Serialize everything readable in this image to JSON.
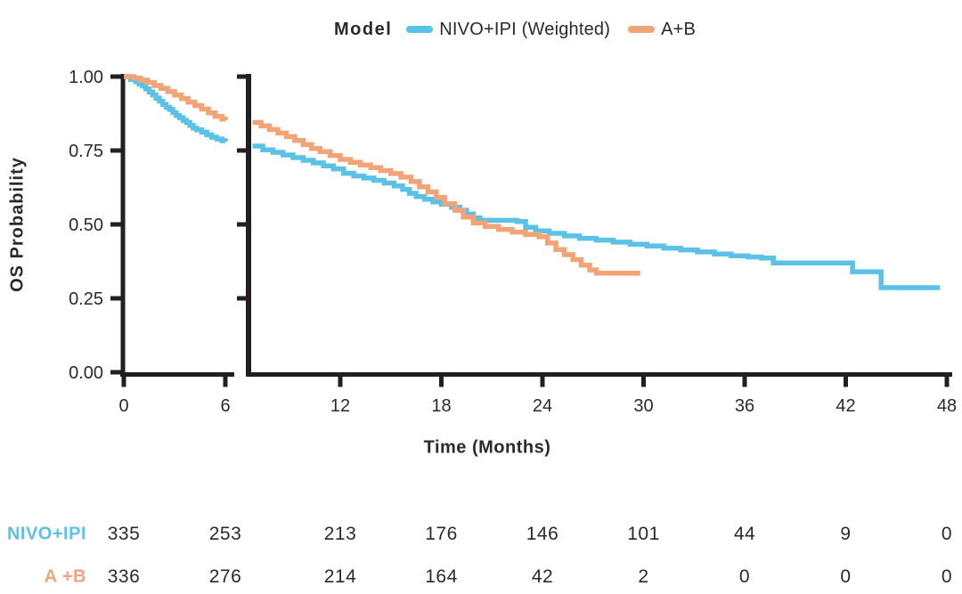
{
  "legend": {
    "title": "Model",
    "items": [
      {
        "label": "NIVO+IPI (Weighted)",
        "color": "#5BC2E7"
      },
      {
        "label": "A+B",
        "color": "#F2A477"
      }
    ]
  },
  "axes": {
    "y_label": "OS Probability",
    "x_label": "Time (Months)",
    "y_ticks": [
      "1.00",
      "0.75",
      "0.50",
      "0.25",
      "0.00"
    ],
    "y_tick_values": [
      1.0,
      0.75,
      0.5,
      0.25,
      0.0
    ],
    "x_ticks_left_panel": [
      0,
      6
    ],
    "x_ticks_main_panel": [
      12,
      18,
      24,
      30,
      36,
      42,
      48
    ]
  },
  "chart_data": {
    "type": "line",
    "subtype": "kaplan-meier-step",
    "title": "",
    "xlabel": "Time (Months)",
    "ylabel": "OS Probability",
    "ylim": [
      0.0,
      1.0
    ],
    "xlim": [
      0,
      48
    ],
    "axis_break_after_month": 6,
    "grid": false,
    "legend_position": "top-center",
    "series": [
      {
        "name": "NIVO+IPI (Weighted)",
        "color": "#5BC2E7",
        "left_panel_points": [
          [
            0,
            1.0
          ],
          [
            0.4,
            0.99
          ],
          [
            0.7,
            0.983
          ],
          [
            0.9,
            0.975
          ],
          [
            1.1,
            0.968
          ],
          [
            1.3,
            0.958
          ],
          [
            1.5,
            0.948
          ],
          [
            1.7,
            0.938
          ],
          [
            1.9,
            0.927
          ],
          [
            2.1,
            0.917
          ],
          [
            2.3,
            0.906
          ],
          [
            2.5,
            0.896
          ],
          [
            2.7,
            0.889
          ],
          [
            2.9,
            0.878
          ],
          [
            3.1,
            0.868
          ],
          [
            3.3,
            0.861
          ],
          [
            3.5,
            0.852
          ],
          [
            3.7,
            0.845
          ],
          [
            3.9,
            0.835
          ],
          [
            4.1,
            0.826
          ],
          [
            4.3,
            0.82
          ],
          [
            4.6,
            0.812
          ],
          [
            4.9,
            0.803
          ],
          [
            5.2,
            0.795
          ],
          [
            5.5,
            0.789
          ],
          [
            5.8,
            0.783
          ],
          [
            6.0,
            0.78
          ]
        ],
        "main_panel_points": [
          [
            6.8,
            0.765
          ],
          [
            7.4,
            0.752
          ],
          [
            8.0,
            0.744
          ],
          [
            8.6,
            0.735
          ],
          [
            9.2,
            0.726
          ],
          [
            9.8,
            0.717
          ],
          [
            10.4,
            0.708
          ],
          [
            11.0,
            0.698
          ],
          [
            11.6,
            0.688
          ],
          [
            12.2,
            0.673
          ],
          [
            12.8,
            0.664
          ],
          [
            13.4,
            0.657
          ],
          [
            14.0,
            0.649
          ],
          [
            14.6,
            0.64
          ],
          [
            15.2,
            0.63
          ],
          [
            15.7,
            0.618
          ],
          [
            16.1,
            0.605
          ],
          [
            16.5,
            0.594
          ],
          [
            17.0,
            0.585
          ],
          [
            17.5,
            0.576
          ],
          [
            18.0,
            0.568
          ],
          [
            18.6,
            0.558
          ],
          [
            19.1,
            0.548
          ],
          [
            19.5,
            0.535
          ],
          [
            19.9,
            0.522
          ],
          [
            20.3,
            0.514
          ],
          [
            22.5,
            0.51
          ],
          [
            23.0,
            0.49
          ],
          [
            23.6,
            0.478
          ],
          [
            24.4,
            0.47
          ],
          [
            25.3,
            0.461
          ],
          [
            26.2,
            0.453
          ],
          [
            27.2,
            0.447
          ],
          [
            28.2,
            0.44
          ],
          [
            29.2,
            0.433
          ],
          [
            30.2,
            0.427
          ],
          [
            31.2,
            0.42
          ],
          [
            32.2,
            0.414
          ],
          [
            33.2,
            0.407
          ],
          [
            34.2,
            0.4
          ],
          [
            35.2,
            0.394
          ],
          [
            36.2,
            0.39
          ],
          [
            37.0,
            0.386
          ],
          [
            37.7,
            0.37
          ],
          [
            42.4,
            0.34
          ],
          [
            44.1,
            0.286
          ],
          [
            47.6,
            0.286
          ]
        ]
      },
      {
        "name": "A+B",
        "color": "#F2A477",
        "left_panel_points": [
          [
            0,
            1.0
          ],
          [
            0.6,
            0.995
          ],
          [
            1.0,
            0.988
          ],
          [
            1.4,
            0.98
          ],
          [
            1.8,
            0.97
          ],
          [
            2.2,
            0.96
          ],
          [
            2.6,
            0.949
          ],
          [
            3.0,
            0.938
          ],
          [
            3.4,
            0.926
          ],
          [
            3.8,
            0.914
          ],
          [
            4.2,
            0.902
          ],
          [
            4.6,
            0.89
          ],
          [
            5.0,
            0.877
          ],
          [
            5.4,
            0.865
          ],
          [
            5.8,
            0.856
          ],
          [
            6.0,
            0.852
          ]
        ],
        "main_panel_points": [
          [
            6.8,
            0.845
          ],
          [
            7.3,
            0.833
          ],
          [
            7.8,
            0.821
          ],
          [
            8.3,
            0.809
          ],
          [
            8.8,
            0.797
          ],
          [
            9.3,
            0.784
          ],
          [
            9.8,
            0.77
          ],
          [
            10.3,
            0.757
          ],
          [
            10.8,
            0.746
          ],
          [
            11.4,
            0.733
          ],
          [
            12.0,
            0.72
          ],
          [
            12.6,
            0.71
          ],
          [
            13.2,
            0.701
          ],
          [
            13.8,
            0.692
          ],
          [
            14.4,
            0.682
          ],
          [
            15.0,
            0.672
          ],
          [
            15.6,
            0.66
          ],
          [
            16.2,
            0.645
          ],
          [
            16.7,
            0.627
          ],
          [
            17.2,
            0.61
          ],
          [
            17.7,
            0.591
          ],
          [
            18.2,
            0.57
          ],
          [
            18.8,
            0.548
          ],
          [
            19.3,
            0.525
          ],
          [
            19.9,
            0.505
          ],
          [
            20.6,
            0.493
          ],
          [
            21.4,
            0.483
          ],
          [
            22.2,
            0.474
          ],
          [
            23.0,
            0.466
          ],
          [
            23.8,
            0.458
          ],
          [
            24.3,
            0.437
          ],
          [
            24.8,
            0.415
          ],
          [
            25.3,
            0.398
          ],
          [
            25.8,
            0.381
          ],
          [
            26.3,
            0.362
          ],
          [
            26.8,
            0.346
          ],
          [
            27.2,
            0.335
          ],
          [
            29.8,
            0.335
          ]
        ]
      }
    ]
  },
  "risk_table": {
    "time_points": [
      0,
      6,
      12,
      18,
      24,
      30,
      36,
      42,
      48
    ],
    "rows": [
      {
        "label": "NIVO+IPI",
        "color": "#5BC2E7",
        "values": [
          "335",
          "253",
          "213",
          "176",
          "146",
          "101",
          "44",
          "9",
          "0"
        ]
      },
      {
        "label": "A +B",
        "color": "#F2A477",
        "values": [
          "336",
          "276",
          "214",
          "164",
          "42",
          "2",
          "0",
          "0",
          "0"
        ]
      }
    ]
  },
  "colors": {
    "axis": "#231f20",
    "text": "#2b2a29",
    "nivo_ipi": "#5BC2E7",
    "a_plus_b": "#F2A477"
  }
}
